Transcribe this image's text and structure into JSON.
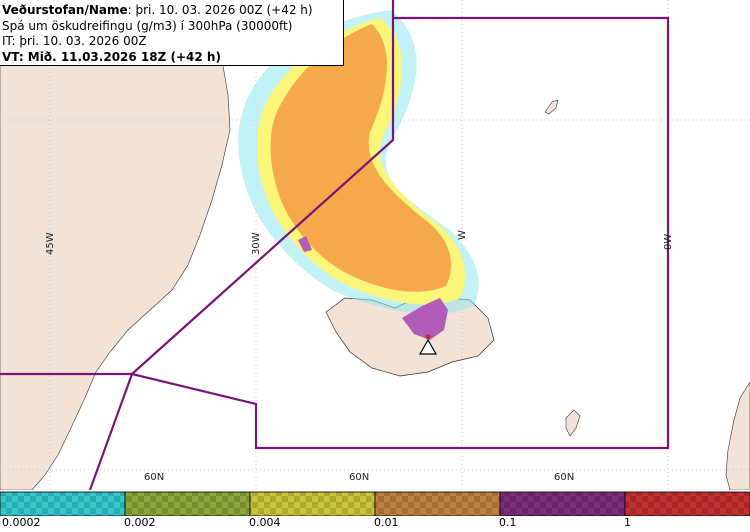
{
  "header": {
    "line1_bold": "Veðurstofan/Name",
    "line1_rest": ": þri. 10. 03. 2026 00Z (+42 h)",
    "line2": "Spá um öskudreifingu (g/m3) í 300hPa (30000ft)",
    "line3": "IT: þri. 10. 03. 2026 00Z",
    "line4": "VT: Mið. 11.03.2026 18Z (+42 h)"
  },
  "graticule": {
    "lon_labels": [
      "45W",
      "30W",
      "W",
      "0W"
    ],
    "lat_labels": [
      "60N",
      "60N",
      "60N"
    ]
  },
  "legend": {
    "colors": [
      "#33c9cc",
      "#8ea63a",
      "#c9c43a",
      "#c08040",
      "#7a2d7a",
      "#c23030"
    ],
    "ticks": [
      "0.0002",
      "0.002",
      "0.004",
      "0.01",
      "0.1",
      "1"
    ]
  },
  "map": {
    "land_color": "#f2e3d6",
    "boundary_color": "#7a147a",
    "ash_colors": {
      "cyan": "#8fe8ee",
      "yellow": "#fbf57a",
      "orange": "#f6a94a",
      "purple": "#b25cb8"
    },
    "source_icon": "volcano-triangle-icon"
  }
}
